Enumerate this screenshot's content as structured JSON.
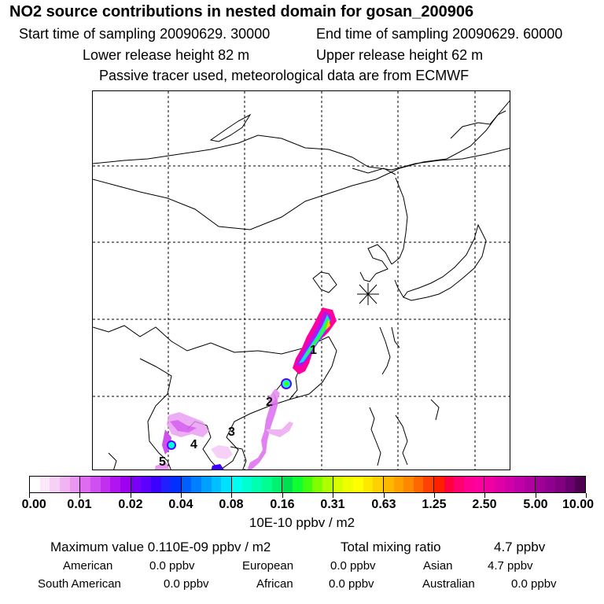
{
  "header": {
    "title": "NO2 source contributions in nested domain for gosan_200906",
    "start_label": "Start time of sampling 20090629. 30000",
    "end_label": "End time of sampling 20090629. 60000",
    "lower_label": "Lower release height   82 m",
    "upper_label": "Upper release height   62 m",
    "note": "Passive tracer used, meteorological data are from ECMWF"
  },
  "map": {
    "markers": [
      "1",
      "2",
      "3",
      "4",
      "5"
    ],
    "receptor_symbol": "star-burst"
  },
  "colorbar": {
    "tick_labels": [
      "0.00",
      "0.01",
      "0.02",
      "0.04",
      "0.08",
      "0.16",
      "0.31",
      "0.63",
      "1.25",
      "2.50",
      "5.00",
      "10.00"
    ],
    "unit": "10E-10 ppbv / m2",
    "colors": [
      [
        "#ffffff",
        "#fbe8fb",
        "#f6d0f7",
        "#f0b4f3",
        "#e998f1"
      ],
      [
        "#dd6cf0",
        "#d04ff0",
        "#c22ff0",
        "#b214f0",
        "#a000f0"
      ],
      [
        "#7a00f5",
        "#5c00ff",
        "#3c00ff",
        "#2020ff",
        "#0030ff"
      ],
      [
        "#0060ff",
        "#0080ff",
        "#00a0ff",
        "#00c0ff",
        "#00e0ff"
      ],
      [
        "#00fff0",
        "#00ffd0",
        "#00ffb0",
        "#00ff90",
        "#00f070"
      ],
      [
        "#00e050",
        "#10ff30",
        "#40ff10",
        "#80ff00",
        "#b0ff00"
      ],
      [
        "#d8ff00",
        "#f0ff00",
        "#ffff00",
        "#ffe800",
        "#ffd000"
      ],
      [
        "#ffb800",
        "#ffa000",
        "#ff8800",
        "#ff6800",
        "#ff4000"
      ],
      [
        "#ff2000",
        "#ff0040",
        "#ff0070",
        "#ff0090",
        "#ff00a0"
      ],
      [
        "#f000a0",
        "#e000a8",
        "#d000a8",
        "#c000a8",
        "#b000a0"
      ],
      [
        "#a00098",
        "#900090",
        "#800080",
        "#6a0070",
        "#500050"
      ]
    ]
  },
  "stats": {
    "max_label": "Maximum value  0.110E-09 ppbv / m2",
    "total_label": "Total mixing ratio",
    "total_value": "4.7 ppbv",
    "regions": [
      {
        "name": "American",
        "value": "0.0 ppbv"
      },
      {
        "name": "European",
        "value": "0.0 ppbv"
      },
      {
        "name": "Asian",
        "value": "4.7 ppbv"
      },
      {
        "name": "South American",
        "value": "0.0 ppbv"
      },
      {
        "name": "African",
        "value": "0.0 ppbv"
      },
      {
        "name": "Australian",
        "value": "0.0 ppbv"
      }
    ]
  }
}
